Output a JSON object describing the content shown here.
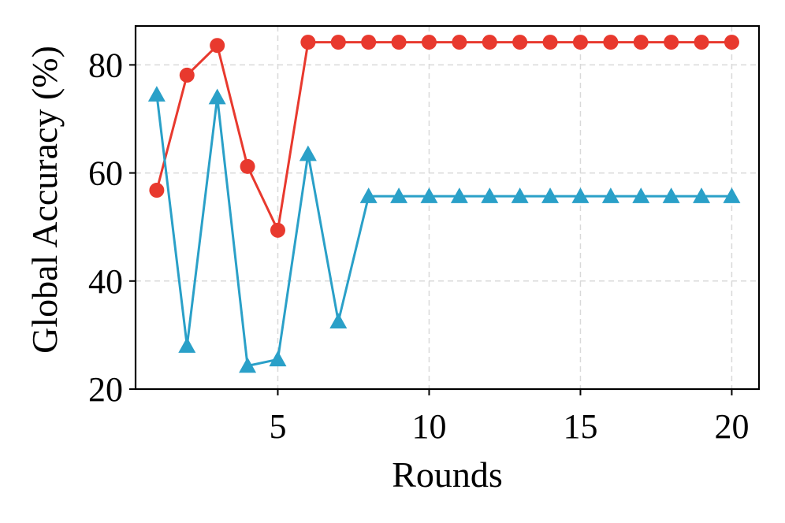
{
  "chart_data": {
    "type": "line",
    "title": "",
    "xlabel": "Rounds",
    "ylabel": "Global Accuracy (%)",
    "xlim": [
      0.3,
      20.9
    ],
    "ylim": [
      20,
      87.2
    ],
    "xticks": [
      5,
      10,
      15,
      20
    ],
    "yticks": [
      20,
      40,
      60,
      80
    ],
    "grid": true,
    "legend": "none",
    "x": [
      1,
      2,
      3,
      4,
      5,
      6,
      7,
      8,
      9,
      10,
      11,
      12,
      13,
      14,
      15,
      16,
      17,
      18,
      19,
      20
    ],
    "series": [
      {
        "color": "#e8392e",
        "marker": "circle",
        "values": [
          56.8,
          78.1,
          83.6,
          61.2,
          49.4,
          84.2,
          84.2,
          84.2,
          84.2,
          84.2,
          84.2,
          84.2,
          84.2,
          84.2,
          84.2,
          84.2,
          84.2,
          84.2,
          84.2,
          84.2
        ]
      },
      {
        "color": "#2aa0c8",
        "marker": "triangle",
        "values": [
          74.5,
          28.0,
          74.0,
          24.3,
          25.5,
          63.5,
          32.5,
          55.7,
          55.7,
          55.7,
          55.7,
          55.7,
          55.7,
          55.7,
          55.7,
          55.7,
          55.7,
          55.7,
          55.7,
          55.7
        ]
      }
    ]
  }
}
